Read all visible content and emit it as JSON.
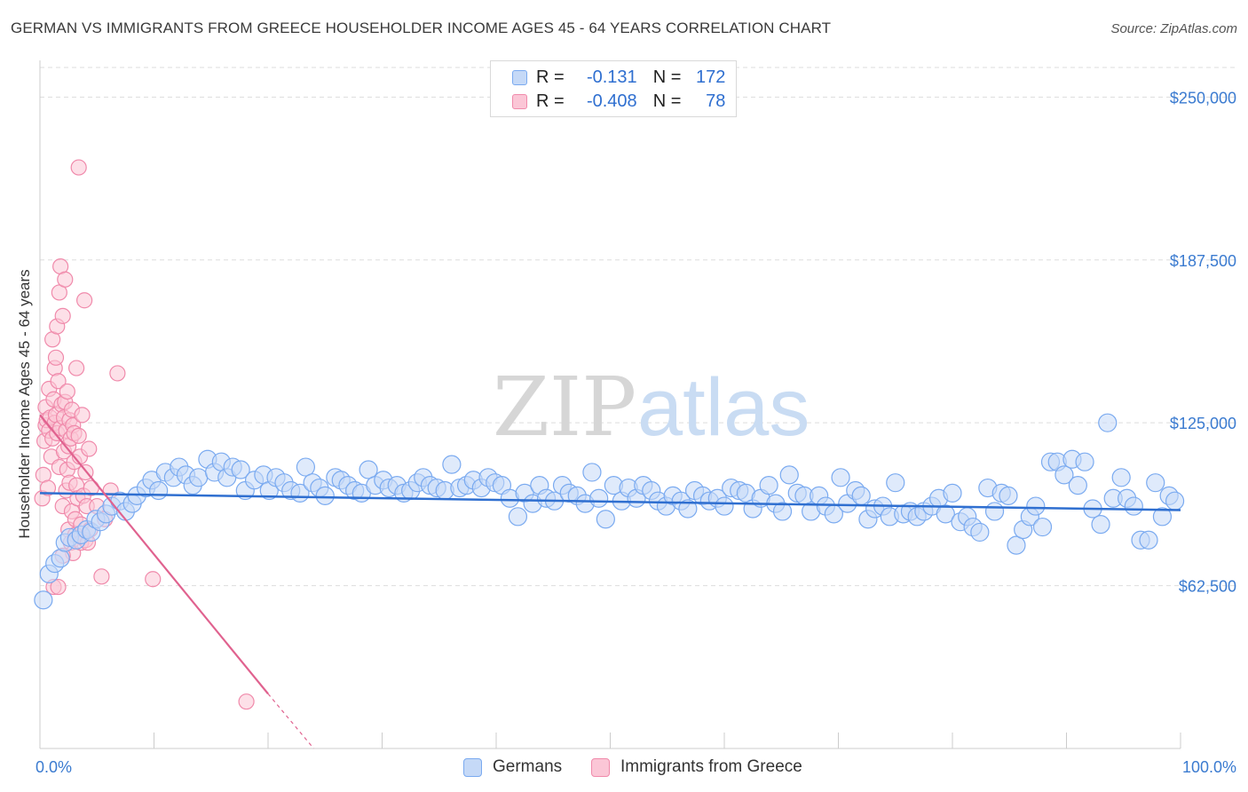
{
  "title": "GERMAN VS IMMIGRANTS FROM GREECE HOUSEHOLDER INCOME AGES 45 - 64 YEARS CORRELATION CHART",
  "source": "Source: ZipAtlas.com",
  "watermark": {
    "zip": "ZIP",
    "atlas": "atlas"
  },
  "legend": {
    "r_label": "R =",
    "n_label": "N =",
    "series": [
      {
        "name": "Germans",
        "r": "-0.131",
        "n": "172",
        "color": "#7aaaf0",
        "fill": "#c5d9f7"
      },
      {
        "name": "Immigrants from Greece",
        "r": "-0.408",
        "n": "78",
        "color": "#f08aab",
        "fill": "#fbc6d6"
      }
    ]
  },
  "colors": {
    "blue_line": "#2f6fd0",
    "pink_line": "#e0628f",
    "grid": "#dddddd",
    "tick_text": "#3b7bd0"
  },
  "chart_data": {
    "type": "scatter",
    "xlabel": "",
    "ylabel": "Householder Income Ages 45 - 64 years",
    "xlim": [
      0,
      100
    ],
    "ylim": [
      0,
      260000
    ],
    "x_tick_labels": [
      "0.0%",
      "100.0%"
    ],
    "y_ticks": [
      62500,
      125000,
      187500,
      250000
    ],
    "y_tick_labels": [
      "$62,500",
      "$125,000",
      "$187,500",
      "$250,000"
    ],
    "series": [
      {
        "name": "Germans",
        "trend": {
          "x": [
            0,
            100
          ],
          "y": [
            98000,
            91500
          ]
        },
        "points": [
          [
            0.3,
            57000
          ],
          [
            0.8,
            67000
          ],
          [
            1.3,
            71000
          ],
          [
            1.8,
            73000
          ],
          [
            2.2,
            79000
          ],
          [
            2.6,
            81000
          ],
          [
            3.2,
            80000
          ],
          [
            3.6,
            82000
          ],
          [
            4.1,
            84000
          ],
          [
            4.5,
            83000
          ],
          [
            4.9,
            88000
          ],
          [
            5.3,
            87000
          ],
          [
            5.8,
            90000
          ],
          [
            6.3,
            93000
          ],
          [
            7.0,
            95000
          ],
          [
            7.5,
            91000
          ],
          [
            8.1,
            94000
          ],
          [
            8.5,
            97000
          ],
          [
            9.3,
            100000
          ],
          [
            9.8,
            103000
          ],
          [
            10.4,
            99000
          ],
          [
            11.0,
            106000
          ],
          [
            11.7,
            104000
          ],
          [
            12.2,
            108000
          ],
          [
            12.8,
            105000
          ],
          [
            13.4,
            101000
          ],
          [
            13.9,
            104000
          ],
          [
            14.7,
            111000
          ],
          [
            15.3,
            106000
          ],
          [
            15.9,
            110000
          ],
          [
            16.4,
            104000
          ],
          [
            16.9,
            108000
          ],
          [
            17.6,
            107000
          ],
          [
            18.0,
            99000
          ],
          [
            18.8,
            103000
          ],
          [
            19.6,
            105000
          ],
          [
            20.1,
            99000
          ],
          [
            20.7,
            104000
          ],
          [
            21.4,
            102000
          ],
          [
            22.0,
            99000
          ],
          [
            22.8,
            98000
          ],
          [
            23.3,
            108000
          ],
          [
            23.9,
            102000
          ],
          [
            24.5,
            100000
          ],
          [
            25.0,
            97000
          ],
          [
            25.9,
            104000
          ],
          [
            26.4,
            103000
          ],
          [
            27.0,
            101000
          ],
          [
            27.6,
            99000
          ],
          [
            28.2,
            98000
          ],
          [
            28.8,
            107000
          ],
          [
            29.4,
            101000
          ],
          [
            30.1,
            103000
          ],
          [
            30.6,
            100000
          ],
          [
            31.3,
            101000
          ],
          [
            31.9,
            98000
          ],
          [
            32.5,
            99000
          ],
          [
            33.1,
            102000
          ],
          [
            33.6,
            104000
          ],
          [
            34.2,
            101000
          ],
          [
            34.8,
            100000
          ],
          [
            35.5,
            99000
          ],
          [
            36.1,
            109000
          ],
          [
            36.8,
            100000
          ],
          [
            37.4,
            101000
          ],
          [
            38.0,
            103000
          ],
          [
            38.7,
            100000
          ],
          [
            39.3,
            104000
          ],
          [
            39.9,
            102000
          ],
          [
            40.5,
            101000
          ],
          [
            41.2,
            96000
          ],
          [
            41.9,
            89000
          ],
          [
            42.5,
            98000
          ],
          [
            43.2,
            94000
          ],
          [
            43.8,
            101000
          ],
          [
            44.4,
            96000
          ],
          [
            45.1,
            95000
          ],
          [
            45.8,
            101000
          ],
          [
            46.4,
            98000
          ],
          [
            47.1,
            97000
          ],
          [
            47.8,
            94000
          ],
          [
            48.4,
            106000
          ],
          [
            49.0,
            96000
          ],
          [
            49.6,
            88000
          ],
          [
            50.3,
            101000
          ],
          [
            51.0,
            95000
          ],
          [
            51.6,
            100000
          ],
          [
            52.3,
            96000
          ],
          [
            52.9,
            101000
          ],
          [
            53.6,
            99000
          ],
          [
            54.2,
            95000
          ],
          [
            54.9,
            93000
          ],
          [
            55.5,
            97000
          ],
          [
            56.2,
            95000
          ],
          [
            56.8,
            92000
          ],
          [
            57.4,
            99000
          ],
          [
            58.1,
            97000
          ],
          [
            58.7,
            95000
          ],
          [
            59.4,
            96000
          ],
          [
            60.0,
            93000
          ],
          [
            60.6,
            100000
          ],
          [
            61.3,
            99000
          ],
          [
            61.9,
            98000
          ],
          [
            62.5,
            92000
          ],
          [
            63.2,
            96000
          ],
          [
            63.9,
            101000
          ],
          [
            64.5,
            94000
          ],
          [
            65.1,
            91000
          ],
          [
            65.7,
            105000
          ],
          [
            66.4,
            98000
          ],
          [
            67.0,
            97000
          ],
          [
            67.6,
            91000
          ],
          [
            68.3,
            97000
          ],
          [
            68.9,
            93000
          ],
          [
            69.6,
            90000
          ],
          [
            70.2,
            104000
          ],
          [
            70.8,
            94000
          ],
          [
            71.5,
            99000
          ],
          [
            72.0,
            97000
          ],
          [
            72.6,
            88000
          ],
          [
            73.2,
            92000
          ],
          [
            73.9,
            93000
          ],
          [
            74.5,
            89000
          ],
          [
            75.0,
            102000
          ],
          [
            75.7,
            90000
          ],
          [
            76.3,
            91000
          ],
          [
            76.9,
            89000
          ],
          [
            77.5,
            91000
          ],
          [
            78.2,
            93000
          ],
          [
            78.8,
            96000
          ],
          [
            79.4,
            90000
          ],
          [
            80.0,
            98000
          ],
          [
            80.7,
            87000
          ],
          [
            81.3,
            89000
          ],
          [
            81.8,
            85000
          ],
          [
            82.4,
            83000
          ],
          [
            83.1,
            100000
          ],
          [
            83.7,
            91000
          ],
          [
            84.3,
            98000
          ],
          [
            84.9,
            97000
          ],
          [
            85.6,
            78000
          ],
          [
            86.2,
            84000
          ],
          [
            86.8,
            89000
          ],
          [
            87.3,
            93000
          ],
          [
            87.9,
            85000
          ],
          [
            88.6,
            110000
          ],
          [
            89.2,
            110000
          ],
          [
            89.8,
            105000
          ],
          [
            90.5,
            111000
          ],
          [
            91.0,
            101000
          ],
          [
            91.6,
            110000
          ],
          [
            92.3,
            92000
          ],
          [
            93.0,
            86000
          ],
          [
            93.6,
            125000
          ],
          [
            94.1,
            96000
          ],
          [
            94.8,
            104000
          ],
          [
            95.3,
            96000
          ],
          [
            95.9,
            93000
          ],
          [
            96.5,
            80000
          ],
          [
            97.2,
            80000
          ],
          [
            97.8,
            102000
          ],
          [
            98.4,
            89000
          ],
          [
            99.0,
            97000
          ],
          [
            99.5,
            95000
          ]
        ]
      },
      {
        "name": "Immigrants from Greece",
        "trend": {
          "x": [
            0,
            20
          ],
          "y": [
            128000,
            21000
          ]
        },
        "trend_dashed": {
          "x": [
            20,
            24
          ],
          "y": [
            21000,
            0
          ]
        },
        "points": [
          [
            0.2,
            96000
          ],
          [
            0.3,
            105000
          ],
          [
            0.4,
            118000
          ],
          [
            0.5,
            124000
          ],
          [
            0.5,
            131000
          ],
          [
            0.6,
            126000
          ],
          [
            0.7,
            100000
          ],
          [
            0.8,
            122000
          ],
          [
            0.8,
            138000
          ],
          [
            0.9,
            127000
          ],
          [
            1.0,
            112000
          ],
          [
            1.1,
            157000
          ],
          [
            1.1,
            119000
          ],
          [
            1.2,
            134000
          ],
          [
            1.3,
            146000
          ],
          [
            1.3,
            125000
          ],
          [
            1.4,
            150000
          ],
          [
            1.4,
            128000
          ],
          [
            1.5,
            162000
          ],
          [
            1.5,
            121000
          ],
          [
            1.6,
            141000
          ],
          [
            1.7,
            175000
          ],
          [
            1.7,
            108000
          ],
          [
            1.8,
            185000
          ],
          [
            1.8,
            123000
          ],
          [
            1.9,
            132000
          ],
          [
            2.0,
            93000
          ],
          [
            2.0,
            166000
          ],
          [
            2.1,
            114000
          ],
          [
            2.1,
            127000
          ],
          [
            2.2,
            180000
          ],
          [
            2.2,
            133000
          ],
          [
            2.3,
            99000
          ],
          [
            2.3,
            122000
          ],
          [
            2.4,
            137000
          ],
          [
            2.4,
            107000
          ],
          [
            2.5,
            84000
          ],
          [
            2.5,
            116000
          ],
          [
            2.6,
            126000
          ],
          [
            2.6,
            102000
          ],
          [
            2.7,
            79000
          ],
          [
            2.7,
            119000
          ],
          [
            2.8,
            130000
          ],
          [
            2.8,
            91000
          ],
          [
            2.9,
            75000
          ],
          [
            2.9,
            124000
          ],
          [
            3.0,
            110000
          ],
          [
            3.0,
            121000
          ],
          [
            3.1,
            88000
          ],
          [
            3.1,
            82000
          ],
          [
            3.2,
            146000
          ],
          [
            3.2,
            101000
          ],
          [
            3.3,
            96000
          ],
          [
            3.4,
            223000
          ],
          [
            3.4,
            120000
          ],
          [
            3.5,
            112000
          ],
          [
            3.6,
            86000
          ],
          [
            3.6,
            79000
          ],
          [
            3.7,
            128000
          ],
          [
            3.8,
            97000
          ],
          [
            3.9,
            172000
          ],
          [
            4.0,
            106000
          ],
          [
            4.0,
            80000
          ],
          [
            4.1,
            93000
          ],
          [
            4.2,
            79000
          ],
          [
            4.3,
            115000
          ],
          [
            4.4,
            84000
          ],
          [
            4.5,
            100000
          ],
          [
            5.0,
            93000
          ],
          [
            5.4,
            66000
          ],
          [
            5.7,
            88000
          ],
          [
            6.2,
            99000
          ],
          [
            6.8,
            144000
          ],
          [
            1.2,
            62000
          ],
          [
            1.6,
            62000
          ],
          [
            2.0,
            74000
          ],
          [
            9.9,
            65000
          ],
          [
            18.1,
            18000
          ]
        ]
      }
    ]
  }
}
